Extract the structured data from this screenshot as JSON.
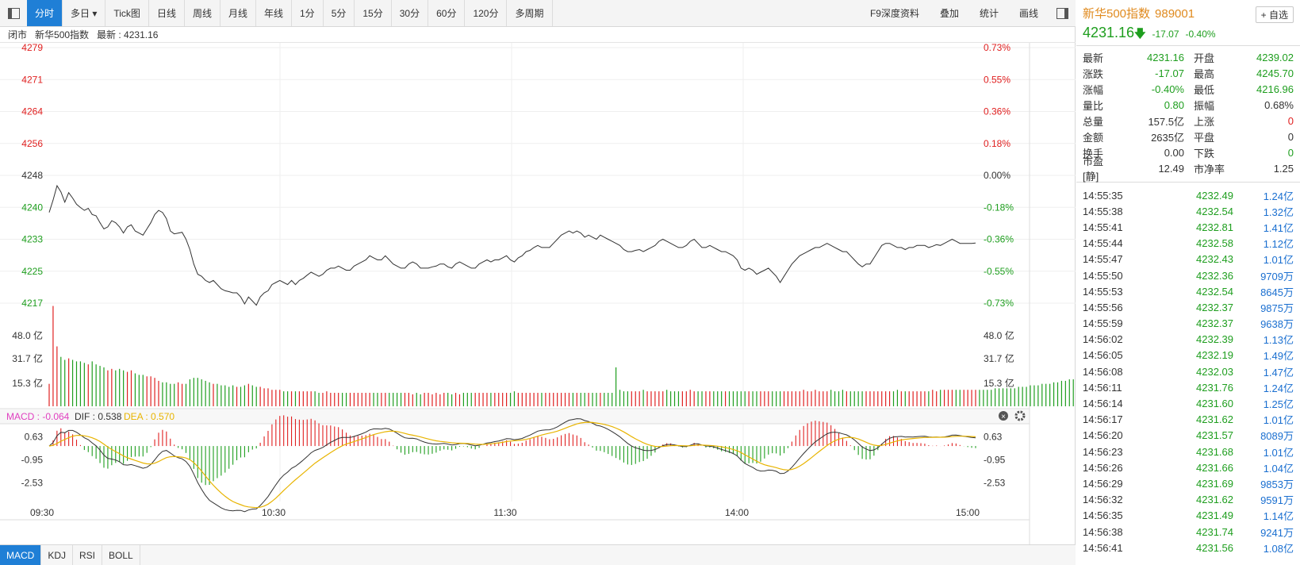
{
  "toolbar": {
    "tabs": [
      "分时",
      "多日 ▾",
      "Tick图",
      "日线",
      "周线",
      "月线",
      "年线",
      "1分",
      "5分",
      "15分",
      "30分",
      "60分",
      "120分",
      "多周期"
    ],
    "right_tools": [
      "F9深度资料",
      "叠加",
      "统计",
      "画线"
    ]
  },
  "info": {
    "status": "闭市",
    "name": "新华500指数",
    "latest_label": "最新 : 4231.16"
  },
  "chart_data": [
    {
      "type": "line",
      "title": "",
      "y_left_ticks": [
        "4279",
        "4271",
        "4264",
        "4256",
        "4248",
        "4240",
        "4233",
        "4225",
        "4217"
      ],
      "y_right_ticks": [
        "0.73%",
        "0.55%",
        "0.36%",
        "0.18%",
        "0.00%",
        "-0.18%",
        "-0.36%",
        "-0.55%",
        "-0.73%"
      ],
      "ylim": [
        4217,
        4279
      ],
      "base": 4248,
      "x_ticks": [
        "09:30",
        "10:30",
        "11:30",
        "14:00",
        "15:00"
      ],
      "price": [
        4239.0,
        4242.0,
        4245.5,
        4244.0,
        4241.5,
        4243.8,
        4242.5,
        4241.0,
        4240.2,
        4239.5,
        4240.0,
        4238.5,
        4238.2,
        4236.5,
        4235.0,
        4235.5,
        4237.0,
        4236.5,
        4235.5,
        4234.0,
        4235.5,
        4236.0,
        4234.5,
        4234.0,
        4233.5,
        4235.0,
        4236.5,
        4238.5,
        4239.5,
        4239.0,
        4237.5,
        4234.5,
        4233.8,
        4234.0,
        4234.2,
        4232.5,
        4230.0,
        4226.5,
        4224.0,
        4223.5,
        4222.5,
        4222.0,
        4222.5,
        4221.5,
        4220.5,
        4220.0,
        4219.8,
        4219.5,
        4219.5,
        4218.5,
        4216.8,
        4218.5,
        4217.5,
        4216.5,
        4218.5,
        4219.5,
        4220.0,
        4221.5,
        4222.0,
        4222.5,
        4222.0,
        4221.5,
        4222.5,
        4221.5,
        4222.5,
        4223.0,
        4223.8,
        4224.5,
        4224.0,
        4223.5,
        4224.0,
        4225.0,
        4225.5,
        4225.5,
        4226.0,
        4225.5,
        4225.0,
        4225.0,
        4226.0,
        4226.5,
        4227.0,
        4227.5,
        4228.5,
        4228.0,
        4227.5,
        4227.5,
        4228.5,
        4227.5,
        4226.5,
        4226.0,
        4225.5,
        4225.5,
        4226.5,
        4227.0,
        4226.5,
        4225.5,
        4225.5,
        4225.5,
        4225.8,
        4226.0,
        4226.5,
        4226.5,
        4225.8,
        4225.5,
        4226.5,
        4227.0,
        4226.5,
        4226.0,
        4225.5,
        4225.5,
        4226.5,
        4227.0,
        4227.5,
        4227.0,
        4227.5,
        4227.5,
        4228.0,
        4228.5,
        4227.5,
        4227.0,
        4228.0,
        4228.5,
        4229.5,
        4229.8,
        4230.5,
        4231.0,
        4230.5,
        4230.5,
        4230.5,
        4231.5,
        4232.5,
        4233.5,
        4234.0,
        4234.5,
        4234.0,
        4234.5,
        4234.0,
        4233.0,
        4233.5,
        4233.0,
        4232.5,
        4233.5,
        4233.0,
        4232.5,
        4232.0,
        4231.5,
        4231.0,
        4230.0,
        4229.5,
        4229.5,
        4229.8,
        4230.0,
        4229.5,
        4230.0,
        4230.5,
        4231.0,
        4232.0,
        4232.5,
        4232.0,
        4231.5,
        4231.0,
        4230.5,
        4230.5,
        4231.0,
        4232.0,
        4232.5,
        4231.5,
        4230.5,
        4230.5,
        4231.0,
        4230.5,
        4230.0,
        4229.5,
        4229.5,
        4229.0,
        4228.5,
        4227.5,
        4225.5,
        4225.0,
        4225.5,
        4225.0,
        4224.0,
        4224.5,
        4225.0,
        4225.5,
        4224.5,
        4223.5,
        4222.0,
        4223.5,
        4225.0,
        4226.5,
        4227.5,
        4228.5,
        4229.0,
        4229.5,
        4230.0,
        4230.5,
        4230.5,
        4231.0,
        4231.5,
        4231.0,
        4230.5,
        4230.0,
        4229.5,
        4229.5,
        4228.5,
        4227.5,
        4226.5,
        4225.8,
        4226.5,
        4226.5,
        4228.0,
        4229.5,
        4231.0,
        4231.5,
        4231.5,
        4231.0,
        4230.5,
        4230.5,
        4230.0,
        4230.5,
        4230.5,
        4231.0,
        4231.0,
        4231.0,
        4230.5,
        4230.8,
        4231.2,
        4231.0,
        4231.5,
        4232.0,
        4232.5,
        4232.0,
        4231.5,
        4231.5,
        4231.5,
        4231.5,
        4231.6
      ],
      "volume_ticks": [
        "48.0 亿",
        "31.7 亿",
        "15.3 亿"
      ],
      "volume_max": 62,
      "volume": [
        15,
        67,
        40,
        33,
        31,
        32,
        31,
        30,
        30,
        29,
        28,
        30,
        28,
        27,
        26,
        24,
        25,
        24,
        25,
        24,
        23,
        24,
        22,
        21,
        21,
        20,
        20,
        19,
        17,
        16,
        16,
        15,
        15,
        16,
        15,
        15,
        18,
        19,
        19,
        18,
        17,
        16,
        15,
        15,
        14,
        14,
        13,
        14,
        13,
        13,
        14,
        15,
        14,
        13,
        13,
        12,
        12,
        11,
        11,
        11,
        10,
        10,
        10,
        10,
        10,
        10,
        10,
        10,
        10,
        9,
        9,
        10,
        9,
        9,
        9,
        9,
        9,
        9,
        9,
        9,
        9,
        9,
        9,
        9,
        9,
        9,
        9,
        9,
        9,
        9,
        9,
        9,
        9,
        8,
        9,
        8,
        9,
        9,
        8,
        9,
        8,
        9,
        9,
        8,
        9,
        8,
        9,
        9,
        9,
        9,
        9,
        9,
        9,
        9,
        9,
        9,
        9,
        9,
        9,
        10,
        9,
        9,
        9,
        9,
        9,
        9,
        9,
        9,
        9,
        9,
        9,
        9,
        9,
        9,
        9,
        9,
        9,
        9,
        9,
        9,
        9,
        9,
        9,
        9,
        9,
        26,
        11,
        10,
        10,
        10,
        10,
        10,
        11,
        10,
        10,
        10,
        10,
        10,
        11,
        10,
        10,
        10,
        10,
        10,
        11,
        10,
        10,
        10,
        10,
        10,
        10,
        10,
        10,
        10,
        10,
        10,
        10,
        10,
        10,
        10,
        10,
        10,
        10,
        10,
        10,
        10,
        10,
        10,
        10,
        10,
        10,
        10,
        10,
        11,
        10,
        10,
        11,
        10,
        10,
        10,
        11,
        10,
        10,
        11,
        10,
        10,
        10,
        10,
        10,
        10,
        10,
        10,
        10,
        10,
        10,
        10,
        10,
        11,
        10,
        10,
        10,
        10,
        10,
        10,
        10,
        10,
        11,
        10,
        11,
        11,
        11,
        11,
        11,
        11,
        11,
        11,
        11,
        11,
        11,
        11,
        11,
        11,
        12,
        12,
        12,
        12,
        12,
        12,
        13,
        13,
        13,
        14,
        14,
        14,
        15,
        15,
        15,
        16,
        16,
        17,
        17,
        18,
        18,
        20,
        20,
        22,
        24,
        55
      ],
      "volume_up": "odd"
    },
    {
      "type": "bar",
      "title": "",
      "legend": {
        "macd": "MACD : -0.064",
        "dif": "DIF : 0.538",
        "dea": "DEA : 0.570"
      },
      "y_ticks": [
        "0.63",
        "-0.95",
        "-2.53"
      ],
      "ylim": [
        -3.8,
        1.2
      ],
      "x_ticks": [
        "09:30",
        "10:30",
        "11:30",
        "14:00",
        "15:00"
      ]
    }
  ],
  "indicator_tabs": [
    "MACD",
    "KDJ",
    "RSI",
    "BOLL"
  ],
  "right_panel": {
    "title": "新华500指数",
    "code": "989001",
    "fav": "+ 自选",
    "price": "4231.16",
    "arrow": "🡇",
    "chg": "-17.07",
    "pct": "-0.40%",
    "quote": [
      {
        "k": "最新",
        "v": "4231.16",
        "vc": "green",
        "k2": "开盘",
        "v2": "4239.02",
        "v2c": "green"
      },
      {
        "k": "涨跌",
        "v": "-17.07",
        "vc": "green",
        "k2": "最高",
        "v2": "4245.70",
        "v2c": "green"
      },
      {
        "k": "涨幅",
        "v": "-0.40%",
        "vc": "green",
        "k2": "最低",
        "v2": "4216.96",
        "v2c": "green"
      },
      {
        "k": "量比",
        "v": "0.80",
        "vc": "green",
        "k2": "振幅",
        "v2": "0.68%",
        "v2c": ""
      },
      {
        "k": "总量",
        "v": "157.5亿",
        "vc": "",
        "k2": "上涨",
        "v2": "0",
        "v2c": "red"
      },
      {
        "k": "金额",
        "v": "2635亿",
        "vc": "",
        "k2": "平盘",
        "v2": "0",
        "v2c": ""
      },
      {
        "k": "换手",
        "v": "0.00",
        "vc": "",
        "k2": "下跌",
        "v2": "0",
        "v2c": "green"
      },
      {
        "k": "市盈[静]",
        "v": "12.49",
        "vc": "",
        "k2": "市净率",
        "v2": "1.25",
        "v2c": ""
      }
    ],
    "ticks": [
      {
        "t": "14:55:35",
        "p": "4232.49",
        "v": "1.24亿"
      },
      {
        "t": "14:55:38",
        "p": "4232.54",
        "v": "1.32亿"
      },
      {
        "t": "14:55:41",
        "p": "4232.81",
        "v": "1.41亿"
      },
      {
        "t": "14:55:44",
        "p": "4232.58",
        "v": "1.12亿"
      },
      {
        "t": "14:55:47",
        "p": "4232.43",
        "v": "1.01亿"
      },
      {
        "t": "14:55:50",
        "p": "4232.36",
        "v": "9709万"
      },
      {
        "t": "14:55:53",
        "p": "4232.54",
        "v": "8645万"
      },
      {
        "t": "14:55:56",
        "p": "4232.37",
        "v": "9875万"
      },
      {
        "t": "14:55:59",
        "p": "4232.37",
        "v": "9638万"
      },
      {
        "t": "14:56:02",
        "p": "4232.39",
        "v": "1.13亿"
      },
      {
        "t": "14:56:05",
        "p": "4232.19",
        "v": "1.49亿"
      },
      {
        "t": "14:56:08",
        "p": "4232.03",
        "v": "1.47亿"
      },
      {
        "t": "14:56:11",
        "p": "4231.76",
        "v": "1.24亿"
      },
      {
        "t": "14:56:14",
        "p": "4231.60",
        "v": "1.25亿"
      },
      {
        "t": "14:56:17",
        "p": "4231.62",
        "v": "1.01亿"
      },
      {
        "t": "14:56:20",
        "p": "4231.57",
        "v": "8089万"
      },
      {
        "t": "14:56:23",
        "p": "4231.68",
        "v": "1.01亿"
      },
      {
        "t": "14:56:26",
        "p": "4231.66",
        "v": "1.04亿"
      },
      {
        "t": "14:56:29",
        "p": "4231.69",
        "v": "9853万"
      },
      {
        "t": "14:56:32",
        "p": "4231.62",
        "v": "9591万"
      },
      {
        "t": "14:56:35",
        "p": "4231.49",
        "v": "1.14亿"
      },
      {
        "t": "14:56:38",
        "p": "4231.74",
        "v": "9241万"
      },
      {
        "t": "14:56:41",
        "p": "4231.56",
        "v": "1.08亿"
      }
    ]
  },
  "colors": {
    "accent": "#1f7fd6",
    "up": "#e02020",
    "down": "#1e9e1e",
    "dif": "#333333",
    "dea": "#e8b400",
    "macd_label": "#e040c0"
  }
}
